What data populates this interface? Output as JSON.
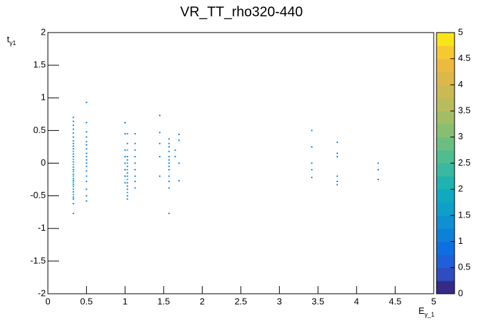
{
  "chart_data": {
    "type": "heatmap",
    "title": "VR_TT_rho320-440",
    "x_label": "E",
    "x_label_sub": "γ_1",
    "y_label": "t",
    "y_label_sub": "γ1",
    "xlim": [
      0,
      5
    ],
    "xticks": [
      0,
      0.5,
      1,
      1.5,
      2,
      2.5,
      3,
      3.5,
      4,
      4.5,
      5
    ],
    "ylim": [
      -2,
      2
    ],
    "yticks": [
      -2,
      -1.5,
      -1,
      -0.5,
      0,
      0.5,
      1,
      1.5,
      2
    ],
    "zlim": [
      0,
      5
    ],
    "zticks": [
      0,
      0.5,
      1,
      1.5,
      2,
      2.5,
      3,
      3.5,
      4,
      4.5,
      5
    ],
    "palette": [
      "#352a87",
      "#2f4cc0",
      "#1f5fd8",
      "#0f6fe0",
      "#0f80d8",
      "#1090d2",
      "#0ea0c8",
      "#10a9c0",
      "#20b2b0",
      "#3ab8a0",
      "#50bc90",
      "#6cbe80",
      "#88be72",
      "#a2bd66",
      "#b8bc5c",
      "#cbb954",
      "#dcb84a",
      "#ecba40",
      "#f6c932",
      "#f9e41c"
    ],
    "x": [
      0.33,
      0.33,
      0.33,
      0.33,
      0.33,
      0.33,
      0.33,
      0.33,
      0.33,
      0.33,
      0.33,
      0.33,
      0.33,
      0.33,
      0.33,
      0.33,
      0.33,
      0.33,
      0.33,
      0.33,
      0.33,
      0.33,
      0.33,
      0.33,
      0.33,
      0.33,
      0.33,
      0.33,
      0.33,
      0.33,
      0.33,
      0.33,
      0.33,
      0.5,
      0.5,
      0.5,
      0.5,
      0.5,
      0.5,
      0.5,
      0.5,
      0.5,
      0.5,
      0.5,
      0.5,
      0.5,
      0.5,
      0.5,
      0.5,
      0.5,
      0.5,
      1,
      1,
      1,
      1,
      1,
      1,
      1,
      1,
      1.03,
      1.03,
      1.03,
      1.03,
      1.03,
      1.03,
      1.03,
      1.03,
      1.03,
      1.03,
      1.03,
      1.03,
      1.03,
      1.03,
      1.03,
      1.03,
      1.03,
      1.13,
      1.13,
      1.13,
      1.13,
      1.13,
      1.13,
      1.13,
      1.13,
      1.13,
      1.45,
      1.45,
      1.45,
      1.45,
      1.45,
      1.57,
      1.57,
      1.57,
      1.57,
      1.57,
      1.57,
      1.57,
      1.57,
      1.57,
      1.57,
      1.57,
      1.57,
      1.57,
      1.65,
      1.65,
      1.7,
      1.7,
      1.7,
      1.7,
      3.42,
      3.42,
      3.42,
      3.42,
      3.42,
      3.75,
      3.75,
      3.75,
      3.75,
      3.75,
      3.75,
      4.28,
      4.28,
      4.28
    ],
    "y": [
      -0.77,
      -0.62,
      -0.55,
      -0.52,
      -0.48,
      -0.44,
      -0.4,
      -0.36,
      -0.33,
      -0.3,
      -0.27,
      -0.24,
      -0.2,
      -0.17,
      -0.13,
      -0.1,
      -0.06,
      -0.02,
      0.02,
      0.06,
      0.1,
      0.14,
      0.18,
      0.22,
      0.26,
      0.3,
      0.34,
      0.4,
      0.46,
      0.52,
      0.58,
      0.64,
      0.7,
      0.93,
      0.62,
      0.48,
      0.4,
      0.33,
      0.28,
      0.22,
      0.15,
      0.1,
      0.05,
      0,
      -0.05,
      -0.12,
      -0.2,
      -0.28,
      -0.4,
      -0.5,
      -0.58,
      0.62,
      0.45,
      0.2,
      0.1,
      0,
      -0.1,
      -0.2,
      -0.3,
      0.45,
      0.3,
      0.2,
      0.1,
      0.05,
      0,
      -0.05,
      -0.1,
      -0.15,
      -0.2,
      -0.25,
      -0.3,
      -0.35,
      -0.4,
      -0.45,
      -0.5,
      -0.55,
      0.45,
      0.3,
      0.2,
      0.1,
      0,
      -0.1,
      -0.2,
      -0.28,
      -0.38,
      0.73,
      0.47,
      0.3,
      0.1,
      -0.2,
      0.37,
      0.3,
      0.25,
      0.18,
      0.1,
      0.05,
      0,
      -0.05,
      -0.1,
      -0.2,
      -0.28,
      -0.38,
      -0.77,
      0.2,
      0.1,
      0.44,
      0.35,
      0,
      -0.27,
      0.5,
      0.25,
      0,
      -0.1,
      -0.22,
      0.32,
      0.15,
      0.1,
      -0.2,
      -0.28,
      -0.33,
      0,
      -0.1,
      -0.25
    ],
    "values": [
      1,
      1,
      1,
      1,
      2,
      1,
      1,
      2,
      1,
      2,
      1,
      1,
      2,
      1,
      2,
      1,
      1,
      2,
      1,
      2,
      1,
      1,
      2,
      1,
      1,
      1,
      1,
      1,
      1,
      1,
      1,
      1,
      1,
      1,
      1,
      1,
      1,
      1,
      1,
      1,
      1,
      1,
      1,
      1,
      1,
      1,
      1,
      1,
      1,
      1,
      1,
      1,
      1,
      1,
      1,
      1,
      1,
      1,
      1,
      1,
      1,
      2,
      1,
      1,
      2,
      1,
      2,
      1,
      1,
      2,
      1,
      1,
      1,
      2,
      1,
      1,
      1,
      1,
      1,
      1,
      1,
      1,
      1,
      1,
      1,
      1,
      1,
      1,
      1,
      1,
      1,
      1,
      1,
      1,
      1,
      1,
      1,
      1,
      1,
      1,
      1,
      1,
      1,
      1,
      1,
      1,
      1,
      1,
      1,
      1,
      1,
      1,
      1,
      1,
      1,
      1,
      1,
      1,
      1,
      1,
      1,
      1,
      1
    ]
  }
}
